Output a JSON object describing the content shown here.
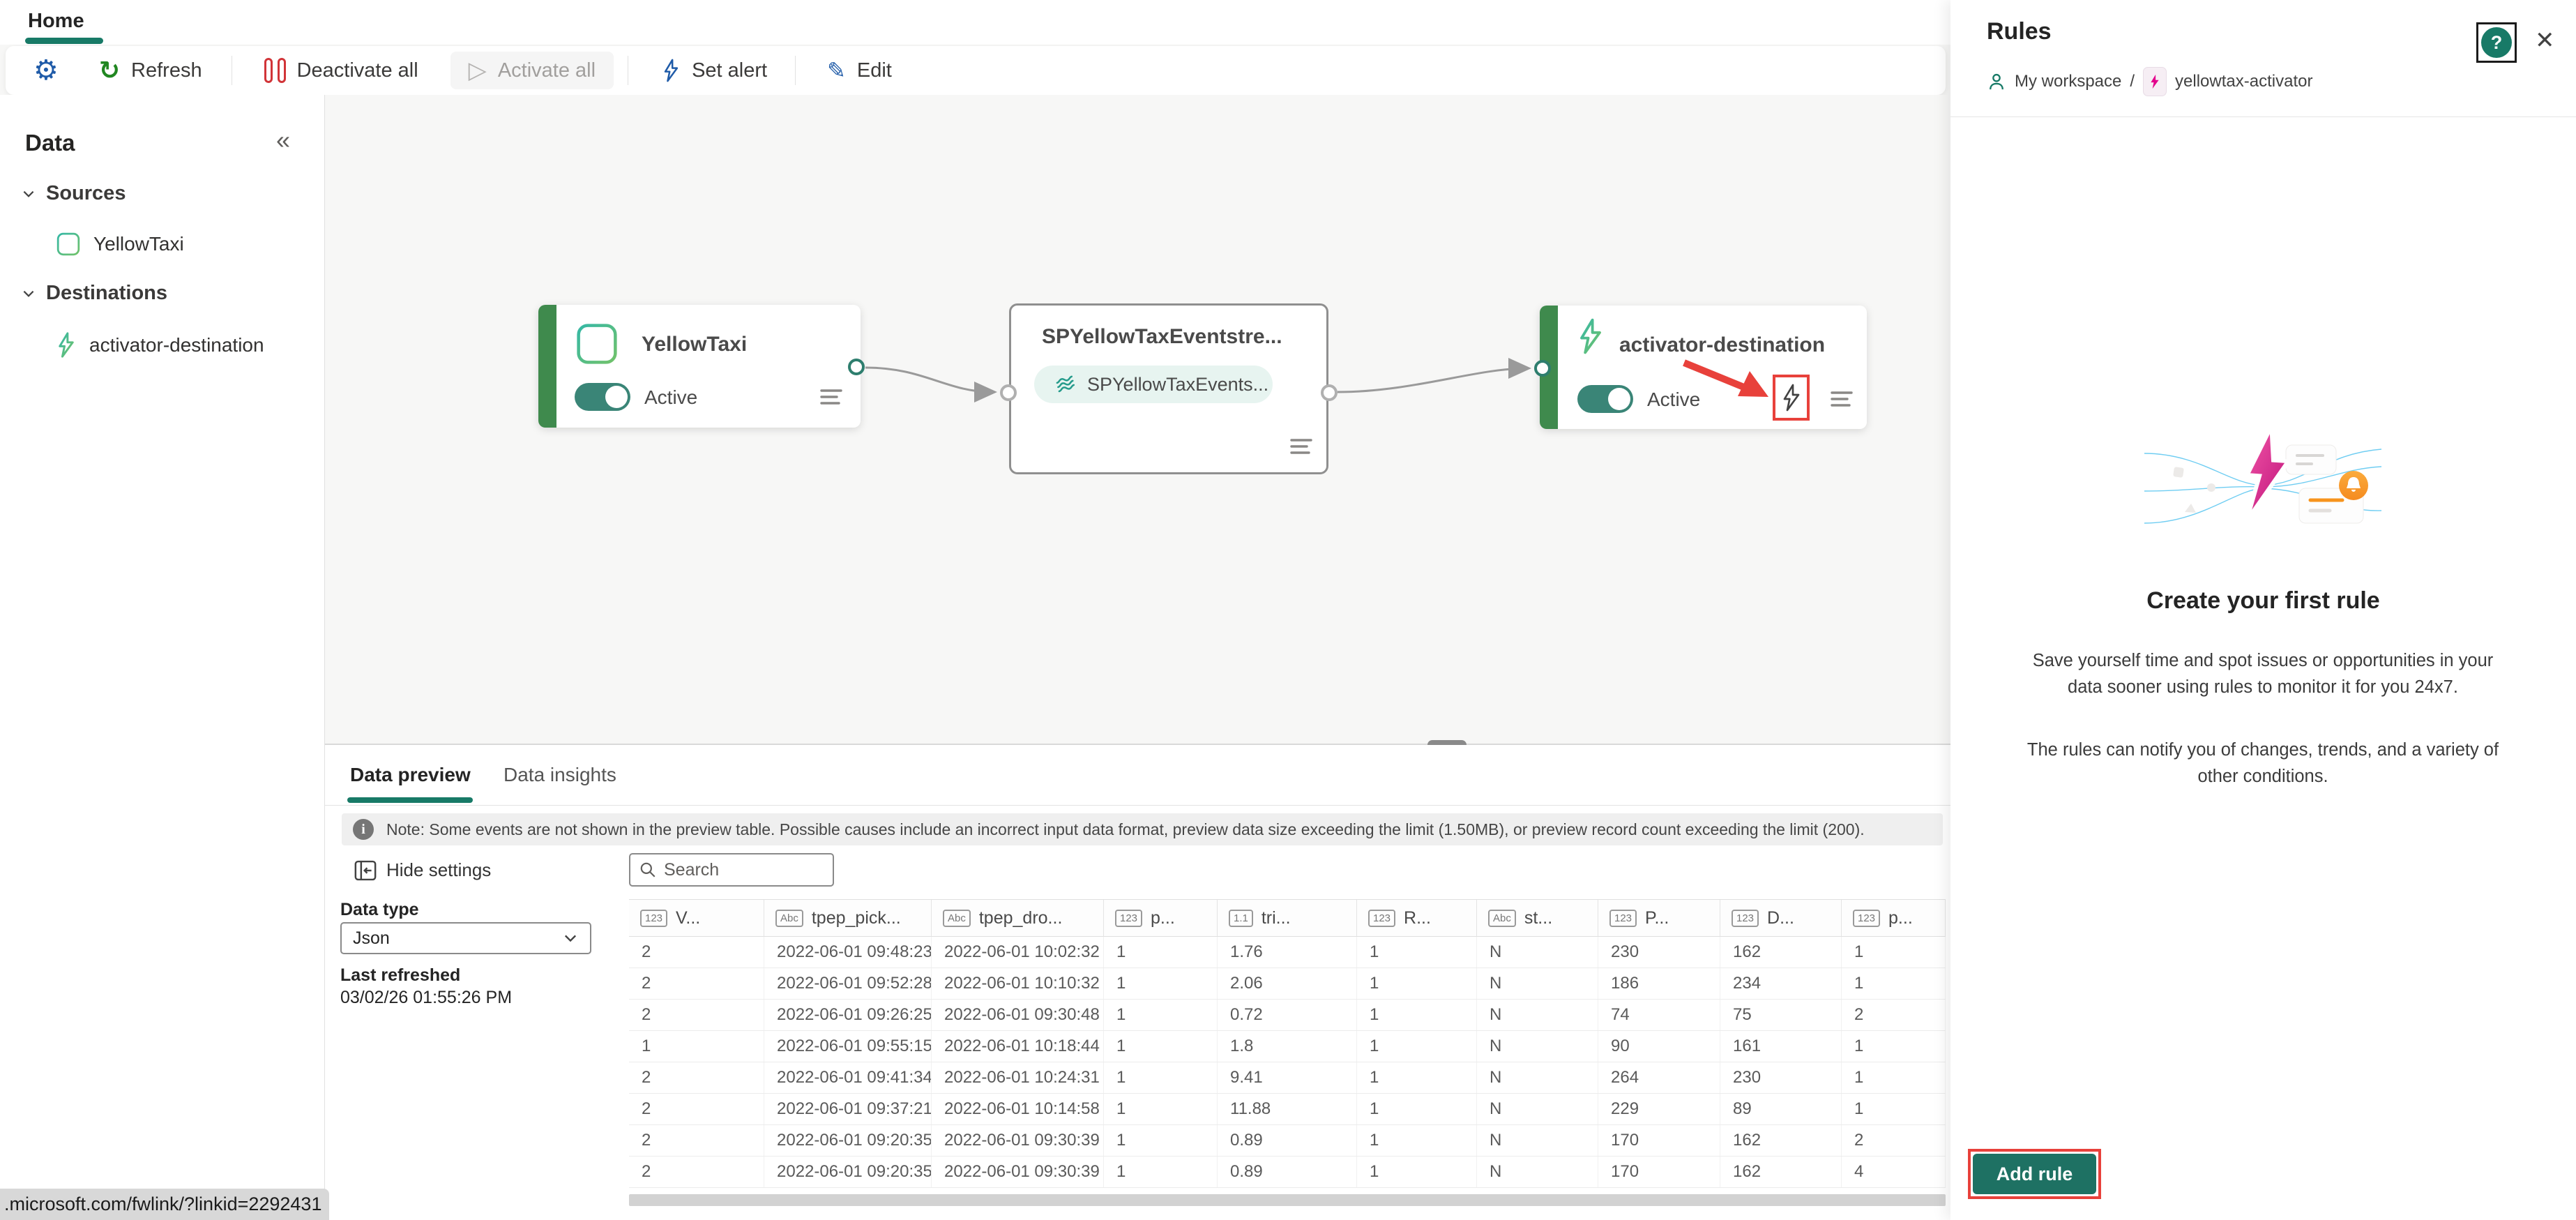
{
  "colors": {
    "accent_teal": "#187A67",
    "toggle_teal": "#3A8577",
    "node_green": "#3F8A4D",
    "annotation_red": "#E8413B",
    "icon_blue": "#1F5BA8",
    "refresh_green": "#218721",
    "pause_red": "#D13438",
    "bolt_pink": "#E3008C",
    "bell_orange": "#F7941D"
  },
  "icons": {
    "gear": "⚙",
    "refresh": "↻",
    "play": "▷",
    "edit": "✎",
    "collapse": "«",
    "close": "✕",
    "info": "i",
    "help": "?"
  },
  "tab_bar": {
    "home": "Home"
  },
  "toolbar": {
    "refresh": "Refresh",
    "deactivate_all": "Deactivate all",
    "activate_all": "Activate all",
    "set_alert": "Set alert",
    "edit": "Edit"
  },
  "sidebar": {
    "title": "Data",
    "sources_label": "Sources",
    "source_item": "YellowTaxi",
    "destinations_label": "Destinations",
    "destination_item": "activator-destination"
  },
  "canvas": {
    "source_node": {
      "title": "YellowTaxi",
      "status": "Active"
    },
    "stream_node": {
      "title": "SPYellowTaxEventstre...",
      "pill": "SPYellowTaxEvents..."
    },
    "destination_node": {
      "title": "activator-destination",
      "status": "Active"
    }
  },
  "preview_panel": {
    "tab_data_preview": "Data preview",
    "tab_data_insights": "Data insights",
    "note": "Note: Some events are not shown in the preview table. Possible causes include an incorrect input data format, preview data size exceeding the limit (1.50MB), or preview record count exceeding the limit (200).",
    "hide_settings": "Hide settings",
    "data_type_label": "Data type",
    "data_type_value": "Json",
    "last_refreshed_label": "Last refreshed",
    "last_refreshed_value": "03/02/26 01:55:26 PM",
    "search_placeholder": "Search"
  },
  "table": {
    "headers": [
      {
        "type": "123",
        "label": "V..."
      },
      {
        "type": "Abc",
        "label": "tpep_pick..."
      },
      {
        "type": "Abc",
        "label": "tpep_dro..."
      },
      {
        "type": "123",
        "label": "p..."
      },
      {
        "type": "1.1",
        "label": "tri..."
      },
      {
        "type": "123",
        "label": "R..."
      },
      {
        "type": "Abc",
        "label": "st..."
      },
      {
        "type": "123",
        "label": "P..."
      },
      {
        "type": "123",
        "label": "D..."
      },
      {
        "type": "123",
        "label": "p..."
      }
    ],
    "rows": [
      [
        "2",
        "2022-06-01 09:48:23",
        "2022-06-01 10:02:32",
        "1",
        "1.76",
        "1",
        "N",
        "230",
        "162",
        "1"
      ],
      [
        "2",
        "2022-06-01 09:52:28",
        "2022-06-01 10:10:32",
        "1",
        "2.06",
        "1",
        "N",
        "186",
        "234",
        "1"
      ],
      [
        "2",
        "2022-06-01 09:26:25",
        "2022-06-01 09:30:48",
        "1",
        "0.72",
        "1",
        "N",
        "74",
        "75",
        "2"
      ],
      [
        "1",
        "2022-06-01 09:55:15",
        "2022-06-01 10:18:44",
        "1",
        "1.8",
        "1",
        "N",
        "90",
        "161",
        "1"
      ],
      [
        "2",
        "2022-06-01 09:41:34",
        "2022-06-01 10:24:31",
        "1",
        "9.41",
        "1",
        "N",
        "264",
        "230",
        "1"
      ],
      [
        "2",
        "2022-06-01 09:37:21",
        "2022-06-01 10:14:58",
        "1",
        "11.88",
        "1",
        "N",
        "229",
        "89",
        "1"
      ],
      [
        "2",
        "2022-06-01 09:20:35",
        "2022-06-01 09:30:39",
        "1",
        "0.89",
        "1",
        "N",
        "170",
        "162",
        "2"
      ],
      [
        "2",
        "2022-06-01 09:20:35",
        "2022-06-01 09:30:39",
        "1",
        "0.89",
        "1",
        "N",
        "170",
        "162",
        "4"
      ]
    ]
  },
  "rules_panel": {
    "title": "Rules",
    "breadcrumb_workspace": "My workspace",
    "breadcrumb_separator": "/",
    "breadcrumb_item": "yellowtax-activator",
    "empty_title": "Create your first rule",
    "empty_text_1": "Save yourself time and spot issues or opportunities in your data sooner using rules to monitor it for you 24x7.",
    "empty_text_2": "The rules can notify you of changes, trends, and a variety of other conditions.",
    "add_rule": "Add rule"
  },
  "status_bar": {
    "link": ".microsoft.com/fwlink/?linkid=2292431"
  }
}
